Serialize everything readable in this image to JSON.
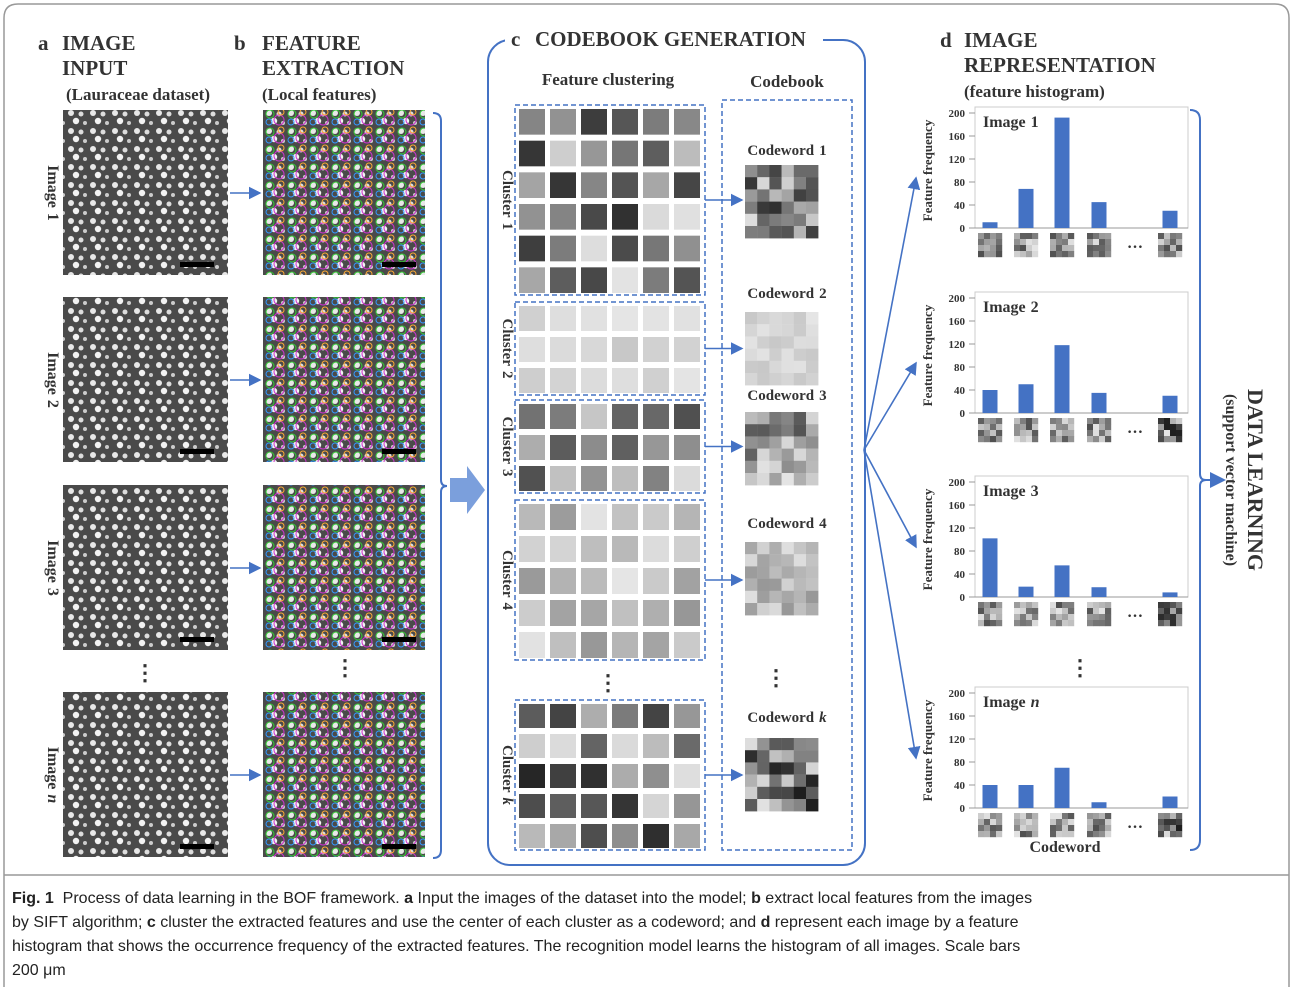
{
  "panels": {
    "a": {
      "letter": "a",
      "title": [
        "IMAGE",
        "INPUT"
      ],
      "subtitle": "(Lauraceae dataset)",
      "ellipsis": "⋮",
      "images": [
        {
          "label": "Image",
          "index": "1"
        },
        {
          "label": "Image",
          "index": "2"
        },
        {
          "label": "Image",
          "index": "3"
        },
        {
          "label": "Image",
          "index": "n",
          "italic": true
        }
      ]
    },
    "b": {
      "letter": "b",
      "title": [
        "FEATURE",
        "EXTRACTION"
      ],
      "subtitle": "(Local features)",
      "ellipsis": "⋮"
    },
    "c": {
      "letter": "c",
      "title": "CODEBOOK GENERATION",
      "clustering_heading": "Feature clustering",
      "codebook_heading": "Codebook",
      "ellipsis": "⋮",
      "clusters": [
        {
          "label": "Cluster",
          "index": "1"
        },
        {
          "label": "Cluster",
          "index": "2"
        },
        {
          "label": "Cluster",
          "index": "3"
        },
        {
          "label": "Cluster",
          "index": "4"
        },
        {
          "label": "Cluster",
          "index": "k",
          "italic": true
        }
      ],
      "codewords": [
        {
          "label": "Codeword",
          "index": "1"
        },
        {
          "label": "Codeword",
          "index": "2"
        },
        {
          "label": "Codeword",
          "index": "3"
        },
        {
          "label": "Codeword",
          "index": "4"
        },
        {
          "label": "Codeword",
          "index": "k",
          "italic": true
        }
      ]
    },
    "d": {
      "letter": "d",
      "title": [
        "IMAGE",
        "REPRESENTATION"
      ],
      "subtitle": "(feature histogram)",
      "y_label": "Feature frequency",
      "x_label": "Codeword",
      "ellipsis": "…",
      "vertical_ellipsis": "⋮",
      "color": "#4472c4",
      "ylim": [
        0,
        200
      ],
      "yticks": [
        0,
        40,
        80,
        120,
        160,
        200
      ],
      "histograms": [
        {
          "label": "Image",
          "index": "1",
          "values": [
            10,
            68,
            192,
            45,
            30
          ]
        },
        {
          "label": "Image",
          "index": "2",
          "values": [
            40,
            50,
            118,
            35,
            30
          ]
        },
        {
          "label": "Image",
          "index": "3",
          "values": [
            102,
            18,
            55,
            17,
            8
          ]
        },
        {
          "label": "Image",
          "index": "n",
          "italic": true,
          "values": [
            40,
            40,
            70,
            10,
            20
          ]
        }
      ]
    }
  },
  "side": {
    "title": "DATA LEARNING",
    "subtitle": "(support vector machine)"
  },
  "caption": {
    "lines": [
      [
        {
          "text": "Fig. 1",
          "bold": true
        },
        {
          "text": "  Process of data learning in the BOF framework. ",
          "bold": false
        },
        {
          "text": "a",
          "bold": true
        },
        {
          "text": " Input the images of the dataset into the model; ",
          "bold": false
        },
        {
          "text": "b",
          "bold": true
        },
        {
          "text": " extract local features from the images",
          "bold": false
        }
      ],
      [
        {
          "text": "by SIFT algorithm; ",
          "bold": false
        },
        {
          "text": "c",
          "bold": true
        },
        {
          "text": " cluster the extracted features and use the center of each cluster as a codeword; and ",
          "bold": false
        },
        {
          "text": "d",
          "bold": true
        },
        {
          "text": " represent each image by a feature",
          "bold": false
        }
      ],
      [
        {
          "text": "histogram that shows the occurrence frequency of the extracted features. The recognition model learns the histogram of all images. Scale bars",
          "bold": false
        }
      ],
      [
        {
          "text": "200 μm",
          "bold": false
        }
      ]
    ]
  }
}
